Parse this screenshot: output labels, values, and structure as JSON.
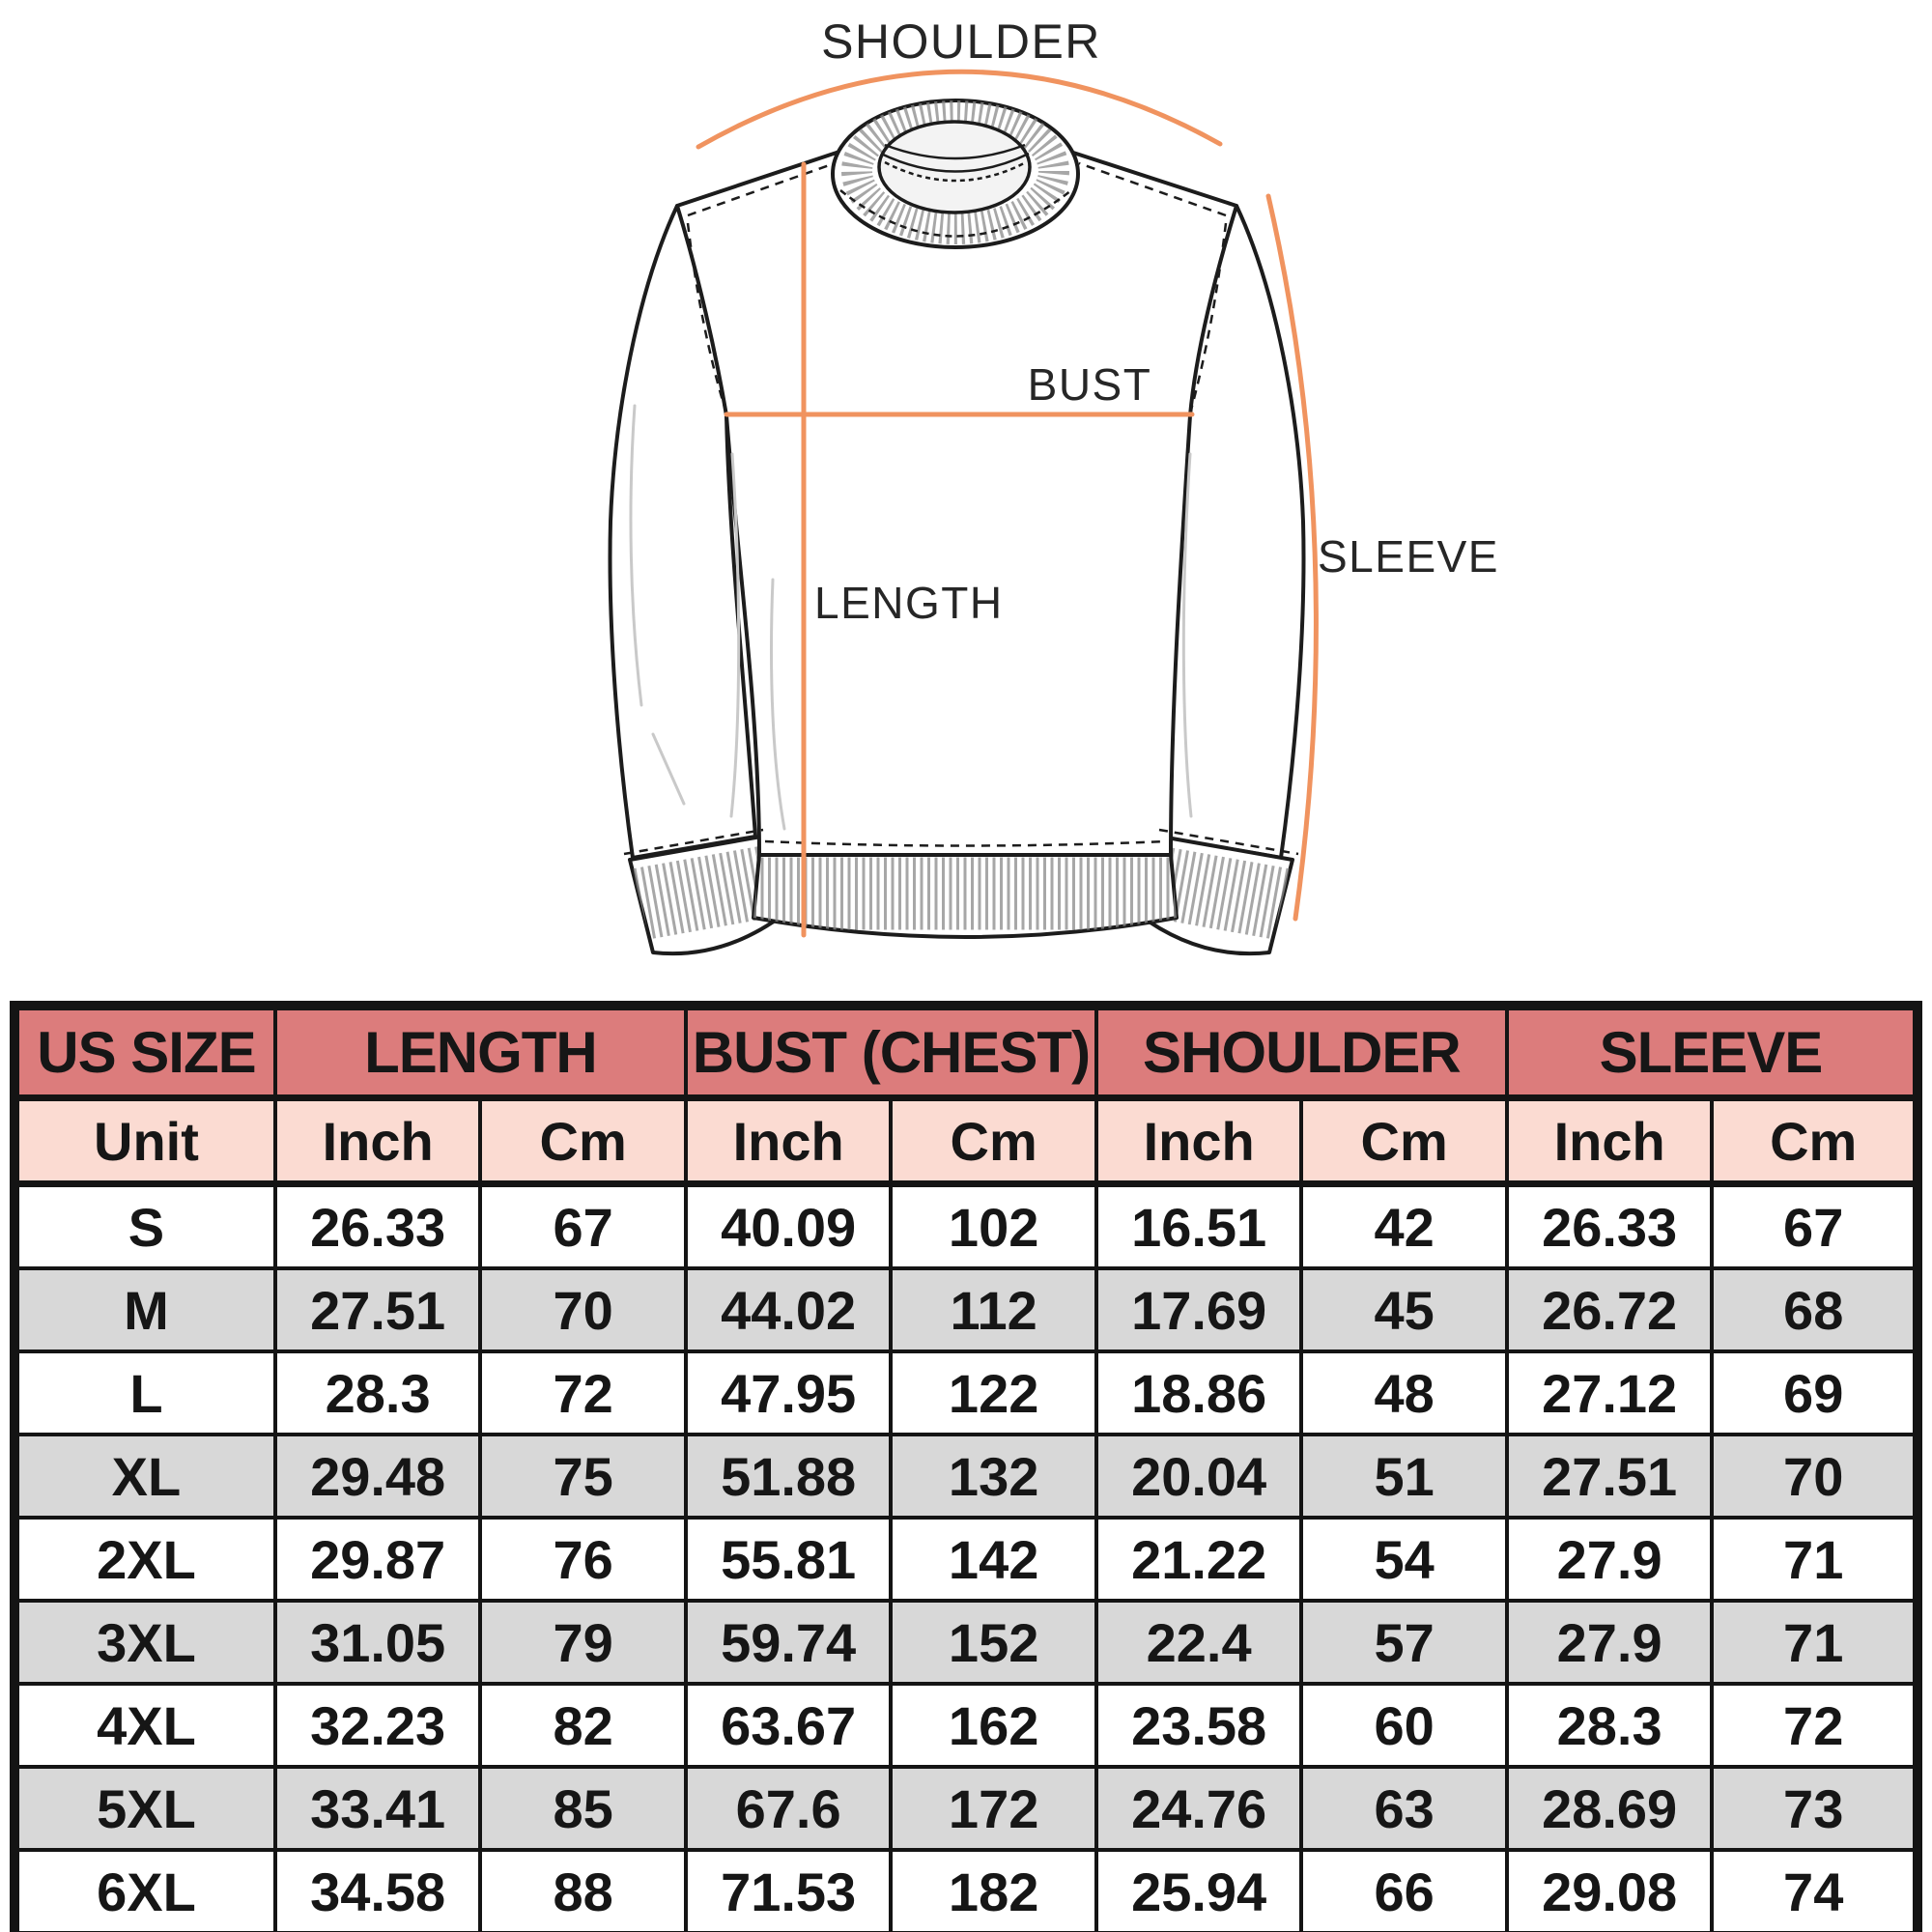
{
  "diagram": {
    "labels": {
      "shoulder": "SHOULDER",
      "bust": "BUST",
      "length": "LENGTH",
      "sleeve": "SLEEVE"
    },
    "colors": {
      "accent": "#F0935F",
      "line": "#1C1C1C"
    }
  },
  "table": {
    "colors": {
      "header": "#DC7C7C",
      "subheader": "#FBDBD2",
      "alt_row": "#D8D8D8",
      "border": "#141414"
    },
    "columns": [
      {
        "label": "US SIZE"
      },
      {
        "label": "LENGTH"
      },
      {
        "label": "BUST (CHEST)"
      },
      {
        "label": "SHOULDER"
      },
      {
        "label": "SLEEVE"
      }
    ],
    "unit_row": [
      "Unit",
      "Inch",
      "Cm",
      "Inch",
      "Cm",
      "Inch",
      "Cm",
      "Inch",
      "Cm"
    ],
    "rows": [
      {
        "size": "S",
        "values": [
          "26.33",
          "67",
          "40.09",
          "102",
          "16.51",
          "42",
          "26.33",
          "67"
        ]
      },
      {
        "size": "M",
        "values": [
          "27.51",
          "70",
          "44.02",
          "112",
          "17.69",
          "45",
          "26.72",
          "68"
        ]
      },
      {
        "size": "L",
        "values": [
          "28.3",
          "72",
          "47.95",
          "122",
          "18.86",
          "48",
          "27.12",
          "69"
        ]
      },
      {
        "size": "XL",
        "values": [
          "29.48",
          "75",
          "51.88",
          "132",
          "20.04",
          "51",
          "27.51",
          "70"
        ]
      },
      {
        "size": "2XL",
        "values": [
          "29.87",
          "76",
          "55.81",
          "142",
          "21.22",
          "54",
          "27.9",
          "71"
        ]
      },
      {
        "size": "3XL",
        "values": [
          "31.05",
          "79",
          "59.74",
          "152",
          "22.4",
          "57",
          "27.9",
          "71"
        ]
      },
      {
        "size": "4XL",
        "values": [
          "32.23",
          "82",
          "63.67",
          "162",
          "23.58",
          "60",
          "28.3",
          "72"
        ]
      },
      {
        "size": "5XL",
        "values": [
          "33.41",
          "85",
          "67.6",
          "172",
          "24.76",
          "63",
          "28.69",
          "73"
        ]
      },
      {
        "size": "6XL",
        "values": [
          "34.58",
          "88",
          "71.53",
          "182",
          "25.94",
          "66",
          "29.08",
          "74"
        ]
      }
    ]
  }
}
